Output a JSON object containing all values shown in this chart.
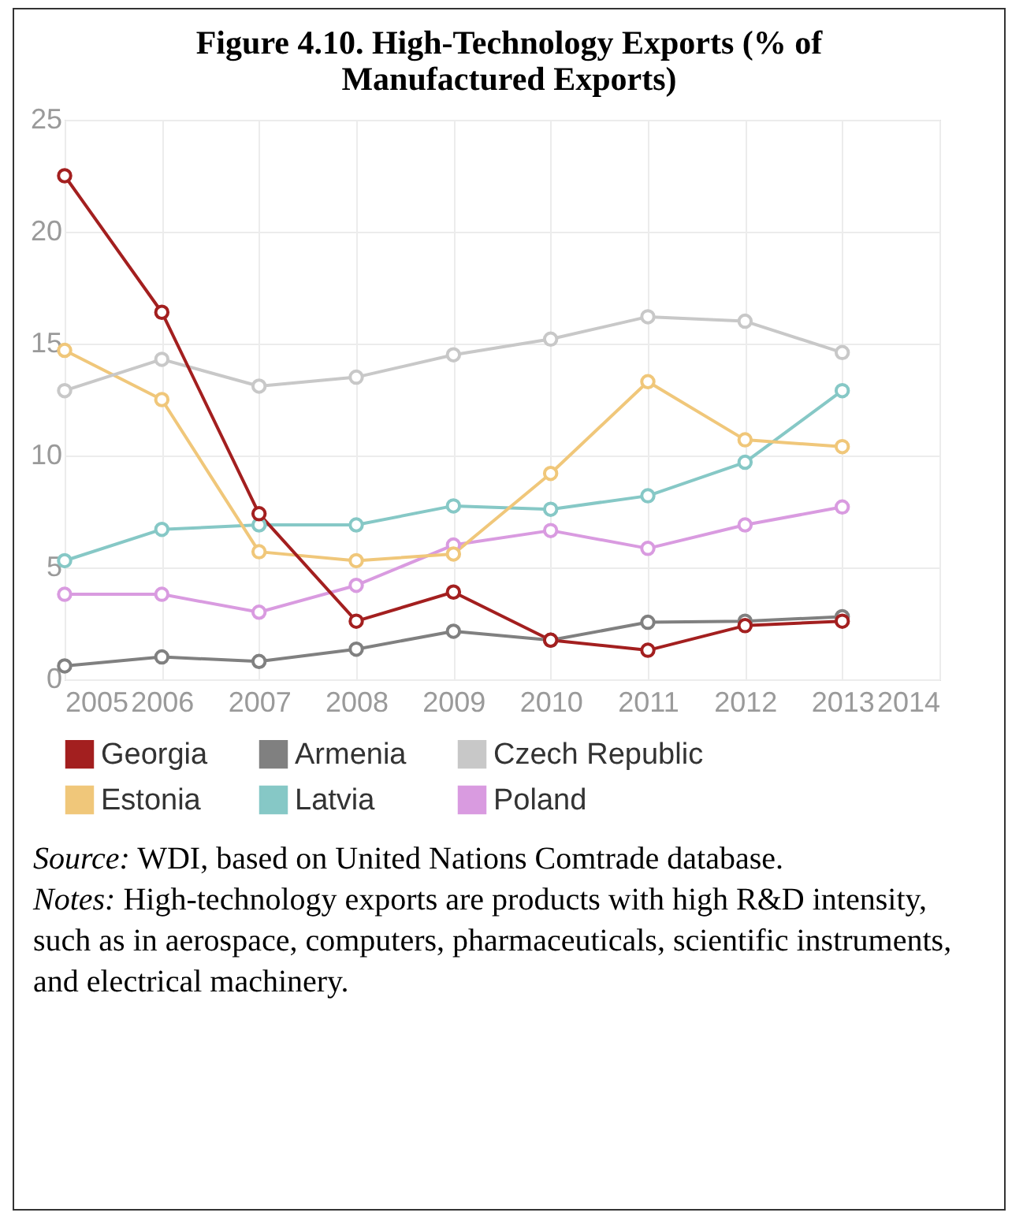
{
  "chart_data": {
    "type": "line",
    "title": "Figure 4.10. High-Technology Exports (% of Manufactured Exports)",
    "x": [
      2005,
      2006,
      2007,
      2008,
      2009,
      2010,
      2011,
      2012,
      2013
    ],
    "series": [
      {
        "name": "Georgia",
        "color": "#a31f1f",
        "values": [
          22.5,
          16.4,
          7.4,
          2.6,
          3.9,
          1.75,
          1.3,
          2.4,
          2.6
        ]
      },
      {
        "name": "Armenia",
        "color": "#808080",
        "values": [
          0.6,
          1.0,
          0.8,
          1.35,
          2.15,
          1.75,
          2.55,
          2.6,
          2.8
        ]
      },
      {
        "name": "Czech Republic",
        "color": "#c8c8c8",
        "values": [
          12.9,
          14.3,
          13.1,
          13.5,
          14.5,
          15.2,
          16.2,
          16.0,
          14.6
        ]
      },
      {
        "name": "Estonia",
        "color": "#f0c77a",
        "values": [
          14.7,
          12.5,
          5.7,
          5.3,
          5.6,
          9.2,
          13.3,
          10.7,
          10.4
        ]
      },
      {
        "name": "Latvia",
        "color": "#86c8c6",
        "values": [
          5.3,
          6.7,
          6.9,
          6.9,
          7.75,
          7.6,
          8.2,
          9.7,
          12.9
        ]
      },
      {
        "name": "Poland",
        "color": "#d99be0",
        "values": [
          3.8,
          3.8,
          3.0,
          4.2,
          6.0,
          6.65,
          5.85,
          6.9,
          7.7
        ]
      }
    ],
    "xlim": [
      2005,
      2014
    ],
    "xticks": [
      2005,
      2006,
      2007,
      2008,
      2009,
      2010,
      2011,
      2012,
      2013,
      2014
    ],
    "ylim": [
      0,
      25
    ],
    "yticks": [
      0,
      5,
      10,
      15,
      20,
      25
    ],
    "grid": true,
    "legend": "bottom",
    "marker": "circle",
    "line_style": "solid",
    "annotations": [
      "Source: WDI, based on United Nations Comtrade database.",
      "Notes: High-technology exports are products with high R&D intensity, such as in aerospace, computers, pharmaceuticals, scientific instruments, and electrical machinery."
    ]
  }
}
